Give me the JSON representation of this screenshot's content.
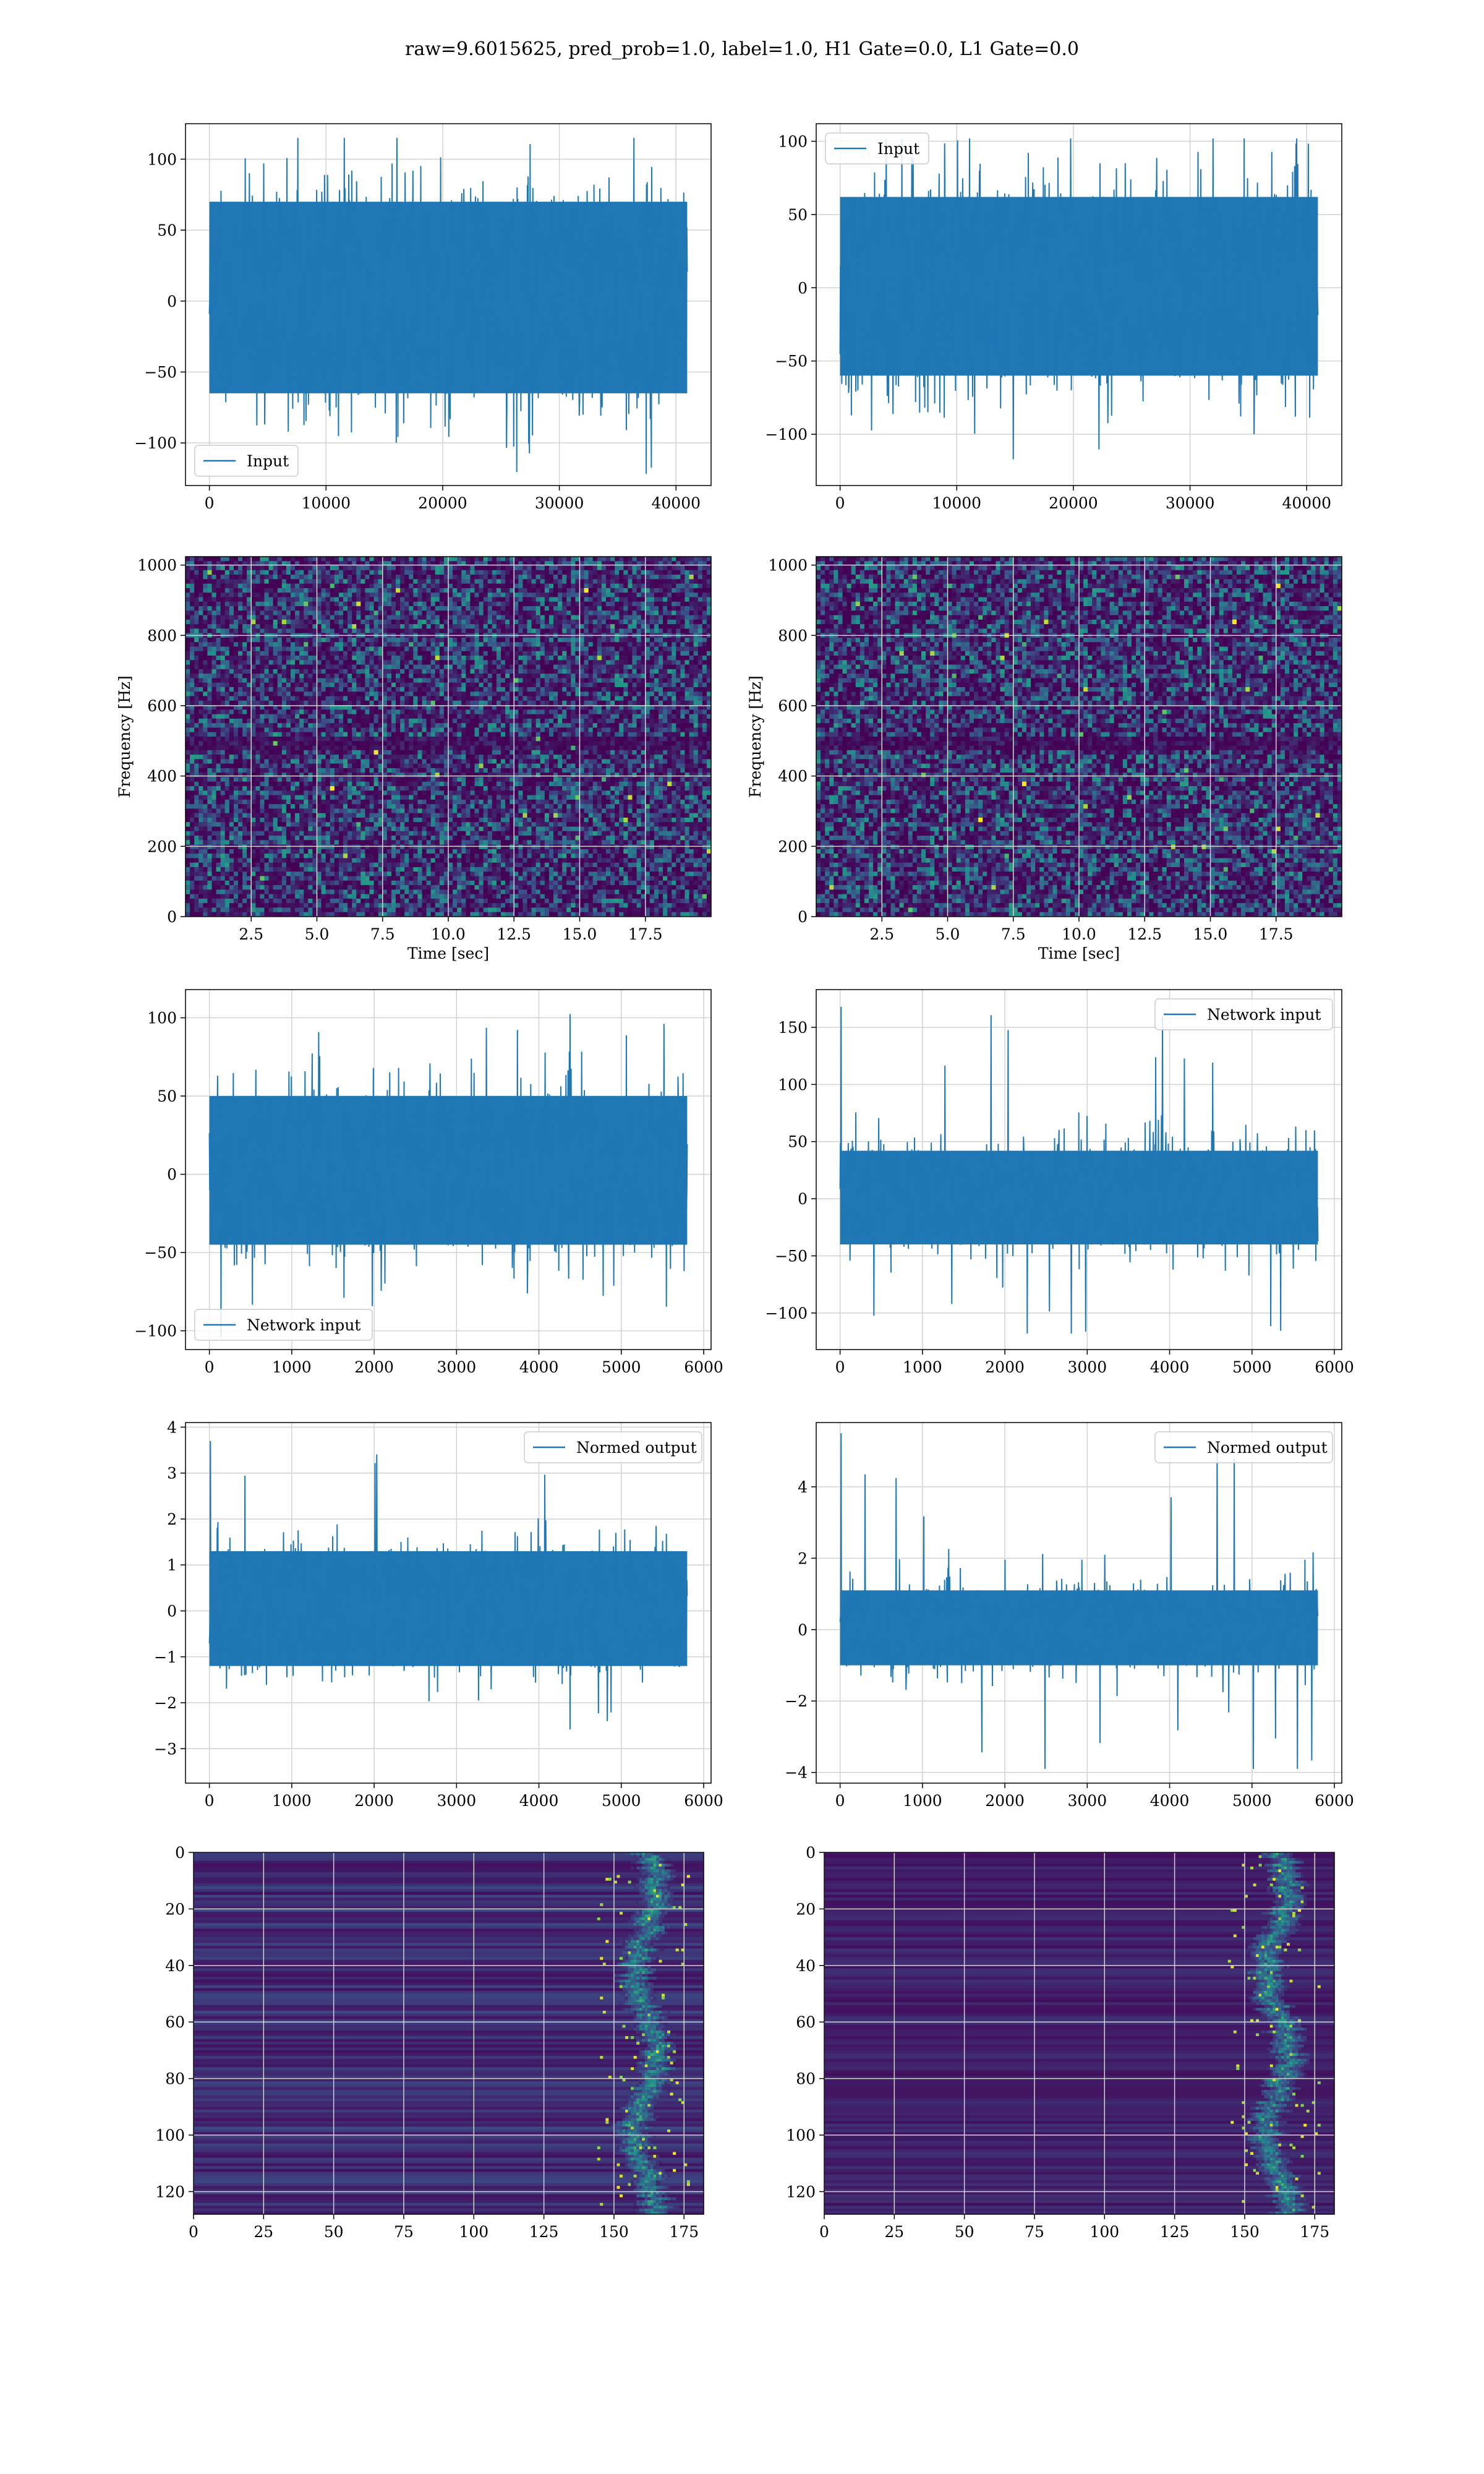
{
  "figure": {
    "title": "raw=9.6015625, pred_prob=1.0, label=1.0, H1 Gate=0.0, L1 Gate=0.0"
  },
  "colors": {
    "series": "#1f77b4",
    "grid": "#d3d3d3",
    "heat_low": "#440154",
    "heat_mid": "#21918c",
    "heat_high": "#fde725"
  },
  "chart_data": [
    {
      "type": "line",
      "panel": "row1-left",
      "series": [
        {
          "name": "Input",
          "x_range": [
            0,
            40960
          ],
          "y_typical": [
            -65,
            70
          ],
          "y_extremes": [
            -122,
            115
          ]
        }
      ],
      "xlim": [
        -2048,
        43008
      ],
      "ylim": [
        -130,
        125
      ],
      "xticks": [
        0,
        10000,
        20000,
        30000,
        40000
      ],
      "yticks": [
        -100,
        -50,
        0,
        50,
        100
      ],
      "xlabel": "",
      "ylabel": "",
      "legend_loc": "lower-left",
      "grid": true
    },
    {
      "type": "line",
      "panel": "row1-right",
      "series": [
        {
          "name": "Input",
          "x_range": [
            0,
            40960
          ],
          "y_typical": [
            -60,
            62
          ],
          "y_extremes": [
            -125,
            102
          ]
        }
      ],
      "xlim": [
        -2048,
        43008
      ],
      "ylim": [
        -135,
        112
      ],
      "xticks": [
        0,
        10000,
        20000,
        30000,
        40000
      ],
      "yticks": [
        -100,
        -50,
        0,
        50,
        100
      ],
      "xlabel": "",
      "ylabel": "",
      "legend_loc": "upper-left",
      "grid": true
    },
    {
      "type": "heatmap",
      "panel": "row2-left",
      "xlim": [
        0,
        20
      ],
      "ylim": [
        0,
        1024
      ],
      "xticks": [
        2.5,
        5.0,
        7.5,
        10.0,
        12.5,
        15.0,
        17.5
      ],
      "yticks": [
        0,
        200,
        400,
        600,
        800,
        1000
      ],
      "xlabel": "Time [sec]",
      "ylabel": "Frequency [Hz]",
      "grid": true
    },
    {
      "type": "heatmap",
      "panel": "row2-right",
      "xlim": [
        0,
        20
      ],
      "ylim": [
        0,
        1024
      ],
      "xticks": [
        2.5,
        5.0,
        7.5,
        10.0,
        12.5,
        15.0,
        17.5
      ],
      "yticks": [
        0,
        200,
        400,
        600,
        800,
        1000
      ],
      "xlabel": "Time [sec]",
      "ylabel": "Frequency [Hz]",
      "grid": true
    },
    {
      "type": "line",
      "panel": "row3-left",
      "series": [
        {
          "name": "Network input",
          "x_range": [
            0,
            5800
          ],
          "y_typical": [
            -45,
            50
          ],
          "y_extremes": [
            -104,
            106
          ]
        }
      ],
      "xlim": [
        -290,
        6090
      ],
      "ylim": [
        -112,
        118
      ],
      "xticks": [
        0,
        1000,
        2000,
        3000,
        4000,
        5000,
        6000
      ],
      "yticks": [
        -100,
        -50,
        0,
        50,
        100
      ],
      "xlabel": "",
      "ylabel": "",
      "legend_loc": "lower-left",
      "grid": true
    },
    {
      "type": "line",
      "panel": "row3-right",
      "series": [
        {
          "name": "Network input",
          "x_range": [
            0,
            5800
          ],
          "y_typical": [
            -40,
            42
          ],
          "y_extremes": [
            -118,
            168
          ]
        }
      ],
      "xlim": [
        -290,
        6090
      ],
      "ylim": [
        -132,
        183
      ],
      "xticks": [
        0,
        1000,
        2000,
        3000,
        4000,
        5000,
        6000
      ],
      "yticks": [
        -100,
        -50,
        0,
        50,
        100,
        150
      ],
      "xlabel": "",
      "ylabel": "",
      "legend_loc": "upper-right",
      "grid": true
    },
    {
      "type": "line",
      "panel": "row4-left",
      "series": [
        {
          "name": "Normed output",
          "x_range": [
            0,
            5800
          ],
          "y_typical": [
            -1.2,
            1.3
          ],
          "y_extremes": [
            -3.4,
            3.7
          ]
        }
      ],
      "xlim": [
        -290,
        6090
      ],
      "ylim": [
        -3.75,
        4.1
      ],
      "xticks": [
        0,
        1000,
        2000,
        3000,
        4000,
        5000,
        6000
      ],
      "yticks": [
        -3,
        -2,
        -1,
        0,
        1,
        2,
        3,
        4
      ],
      "xlabel": "",
      "ylabel": "",
      "legend_loc": "upper-right",
      "grid": true
    },
    {
      "type": "line",
      "panel": "row4-right",
      "series": [
        {
          "name": "Normed output",
          "x_range": [
            0,
            5800
          ],
          "y_typical": [
            -1.0,
            1.1
          ],
          "y_extremes": [
            -3.9,
            5.5
          ]
        }
      ],
      "xlim": [
        -290,
        6090
      ],
      "ylim": [
        -4.3,
        5.8
      ],
      "xticks": [
        0,
        1000,
        2000,
        3000,
        4000,
        5000,
        6000
      ],
      "yticks": [
        -4,
        -2,
        0,
        2,
        4
      ],
      "xlabel": "",
      "ylabel": "",
      "legend_loc": "upper-right",
      "grid": true
    },
    {
      "type": "heatmap",
      "panel": "row5-left",
      "rows": 128,
      "cols": 182,
      "xlim": [
        0,
        182
      ],
      "ylim": [
        128,
        0
      ],
      "xticks": [
        0,
        25,
        50,
        75,
        100,
        125,
        150,
        175
      ],
      "yticks": [
        0,
        20,
        40,
        60,
        80,
        100,
        120
      ],
      "hot_band_cols": [
        150,
        172
      ],
      "xlabel": "",
      "ylabel": "",
      "grid": true
    },
    {
      "type": "heatmap",
      "panel": "row5-right",
      "rows": 128,
      "cols": 182,
      "xlim": [
        0,
        182
      ],
      "ylim": [
        128,
        0
      ],
      "xticks": [
        0,
        25,
        50,
        75,
        100,
        125,
        150,
        175
      ],
      "yticks": [
        0,
        20,
        40,
        60,
        80,
        100,
        120
      ],
      "hot_band_cols": [
        150,
        172
      ],
      "xlabel": "",
      "ylabel": "",
      "grid": true
    }
  ]
}
